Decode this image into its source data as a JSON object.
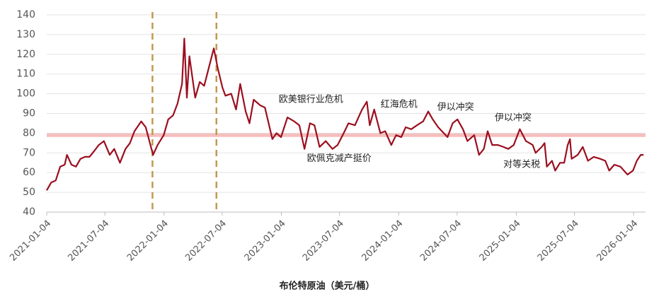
{
  "chart_data": {
    "type": "line",
    "x_label": "布伦特原油（美元/桶）",
    "x": [
      "2021-01-04",
      "2021-01-18",
      "2021-02-01",
      "2021-02-15",
      "2021-03-01",
      "2021-03-08",
      "2021-03-22",
      "2021-04-05",
      "2021-04-19",
      "2021-05-03",
      "2021-05-17",
      "2021-06-01",
      "2021-06-15",
      "2021-07-01",
      "2021-07-19",
      "2021-08-02",
      "2021-08-20",
      "2021-09-06",
      "2021-09-20",
      "2021-10-04",
      "2021-10-25",
      "2021-11-08",
      "2021-11-26",
      "2021-12-01",
      "2021-12-15",
      "2022-01-03",
      "2022-01-17",
      "2022-02-01",
      "2022-02-15",
      "2022-03-01",
      "2022-03-08",
      "2022-03-16",
      "2022-03-24",
      "2022-04-11",
      "2022-04-25",
      "2022-05-09",
      "2022-05-23",
      "2022-06-08",
      "2022-06-20",
      "2022-07-05",
      "2022-07-14",
      "2022-08-01",
      "2022-08-16",
      "2022-08-29",
      "2022-09-15",
      "2022-09-27",
      "2022-10-10",
      "2022-10-31",
      "2022-11-14",
      "2022-12-07",
      "2022-12-20",
      "2023-01-03",
      "2023-01-23",
      "2023-02-13",
      "2023-03-01",
      "2023-03-17",
      "2023-04-03",
      "2023-04-17",
      "2023-05-03",
      "2023-05-22",
      "2023-06-12",
      "2023-06-28",
      "2023-07-17",
      "2023-08-01",
      "2023-08-21",
      "2023-09-12",
      "2023-09-27",
      "2023-10-06",
      "2023-10-20",
      "2023-11-08",
      "2023-11-23",
      "2023-12-12",
      "2023-12-27",
      "2024-01-12",
      "2024-01-26",
      "2024-02-12",
      "2024-03-01",
      "2024-03-20",
      "2024-04-05",
      "2024-04-19",
      "2024-05-06",
      "2024-06-04",
      "2024-06-20",
      "2024-07-05",
      "2024-07-22",
      "2024-08-05",
      "2024-08-26",
      "2024-09-10",
      "2024-09-25",
      "2024-10-07",
      "2024-10-21",
      "2024-11-08",
      "2024-11-25",
      "2024-12-10",
      "2024-12-27",
      "2025-01-15",
      "2025-02-03",
      "2025-02-24",
      "2025-03-05",
      "2025-03-24",
      "2025-04-02",
      "2025-04-09",
      "2025-04-25",
      "2025-05-05",
      "2025-05-20",
      "2025-06-02",
      "2025-06-13",
      "2025-06-20",
      "2025-06-25",
      "2025-07-14",
      "2025-07-30",
      "2025-08-15",
      "2025-09-02",
      "2025-09-22",
      "2025-10-08",
      "2025-10-20",
      "2025-11-05",
      "2025-11-24",
      "2025-12-16",
      "2026-01-02",
      "2026-01-14",
      "2026-01-26",
      "2026-02-04"
    ],
    "series": [
      {
        "color": "#9b0f1f",
        "values": [
          51,
          55,
          56,
          63,
          64,
          69,
          64,
          63,
          67,
          68,
          68,
          71,
          74,
          76,
          69,
          72,
          65,
          72,
          75,
          81,
          86,
          83,
          72,
          69,
          74,
          79,
          87,
          89,
          95,
          105,
          128,
          98,
          119,
          98,
          106,
          104,
          113,
          123,
          113,
          103,
          99,
          100,
          92,
          105,
          91,
          85,
          97,
          94,
          93,
          77,
          80,
          78,
          88,
          86,
          84,
          72,
          85,
          84,
          73,
          76,
          72,
          74,
          80,
          85,
          84,
          92,
          96,
          84,
          92,
          80,
          81,
          74,
          79,
          78,
          83,
          82,
          84,
          86,
          91,
          87,
          83,
          78,
          85,
          87,
          82,
          76,
          79,
          69,
          72,
          81,
          74,
          74,
          73,
          72,
          74,
          82,
          76,
          74,
          70,
          73,
          75,
          63,
          66,
          61,
          65,
          65,
          74,
          77,
          67,
          69,
          73,
          66,
          68,
          67,
          66,
          61,
          64,
          63,
          59,
          61,
          66,
          69,
          69
        ]
      }
    ],
    "xlim": [
      "2021-01-04",
      "2026-02-10"
    ],
    "xticks": [
      "2021-01-04",
      "2021-07-04",
      "2022-01-04",
      "2022-07-04",
      "2023-01-04",
      "2023-07-04",
      "2024-01-04",
      "2024-07-04",
      "2025-01-04",
      "2025-07-04",
      "2026-01-04"
    ],
    "ylim": [
      40,
      140
    ],
    "yticks": [
      40,
      50,
      60,
      70,
      80,
      90,
      100,
      110,
      120,
      130,
      140
    ],
    "grid": true,
    "hline": {
      "value": 79,
      "color": "#f3a3a3"
    },
    "vlines": {
      "x": [
        "2021-11-29",
        "2022-06-16"
      ],
      "color": "#c09a50"
    },
    "annotations": [
      {
        "text": "欧美银行业危机",
        "x": "2023-04-06",
        "y": 97
      },
      {
        "text": "欧佩克减产挺价",
        "x": "2023-07-03",
        "y": 67
      },
      {
        "text": "红海危机",
        "x": "2024-01-05",
        "y": 94.5
      },
      {
        "text": "伊以冲突",
        "x": "2024-06-29",
        "y": 93
      },
      {
        "text": "伊以冲突",
        "x": "2024-12-25",
        "y": 87.7
      },
      {
        "text": "对等关税",
        "x": "2025-01-21",
        "y": 64
      }
    ]
  }
}
